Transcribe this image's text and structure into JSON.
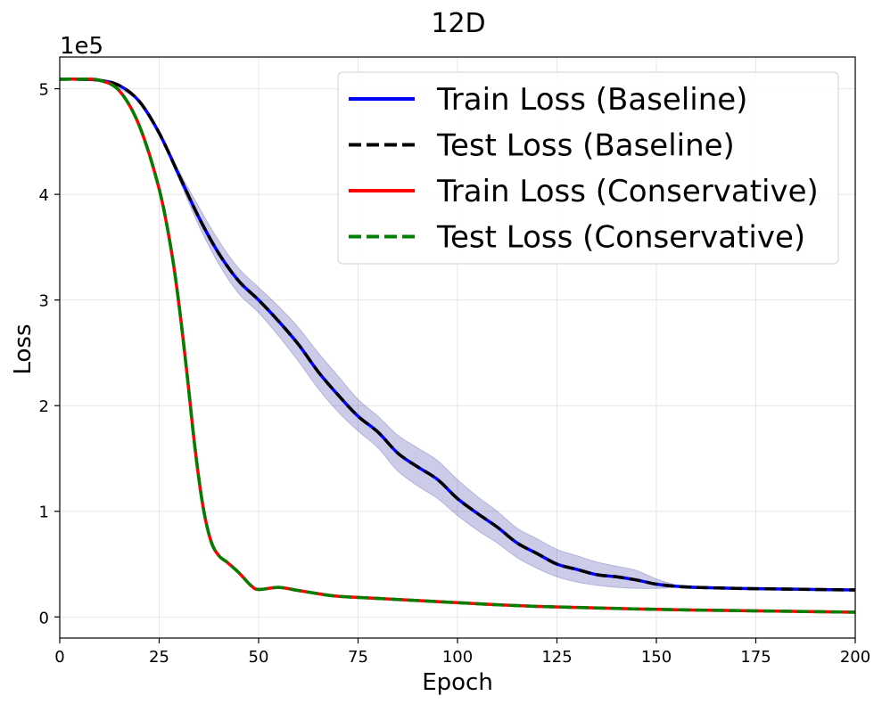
{
  "chart_data": {
    "type": "line",
    "title": "12D",
    "xlabel": "Epoch",
    "ylabel": "Loss",
    "y_offset_label": "1e5",
    "xlim": [
      0,
      200
    ],
    "ylim": [
      -0.2,
      5.3
    ],
    "xticks": [
      0,
      25,
      50,
      75,
      100,
      125,
      150,
      175,
      200
    ],
    "yticks": [
      0,
      1,
      2,
      3,
      4,
      5
    ],
    "grid": true,
    "legend_position": "top-right",
    "series": [
      {
        "name": "Train Loss (Baseline)",
        "color": "#0000ff",
        "style": "solid",
        "x": [
          0,
          5,
          10,
          15,
          20,
          25,
          30,
          35,
          40,
          45,
          50,
          55,
          60,
          65,
          70,
          75,
          80,
          85,
          90,
          95,
          100,
          105,
          110,
          115,
          120,
          125,
          130,
          135,
          140,
          145,
          150,
          155,
          160,
          170,
          180,
          190,
          200
        ],
        "y": [
          5.09,
          5.09,
          5.08,
          5.03,
          4.88,
          4.58,
          4.18,
          3.78,
          3.44,
          3.18,
          3.0,
          2.8,
          2.58,
          2.32,
          2.1,
          1.9,
          1.75,
          1.55,
          1.42,
          1.3,
          1.12,
          0.98,
          0.85,
          0.7,
          0.6,
          0.5,
          0.45,
          0.4,
          0.38,
          0.35,
          0.31,
          0.29,
          0.28,
          0.27,
          0.265,
          0.26,
          0.255
        ]
      },
      {
        "name": "Test Loss (Baseline)",
        "color": "#000000",
        "style": "dashed",
        "x": [
          0,
          5,
          10,
          15,
          20,
          25,
          30,
          35,
          40,
          45,
          50,
          55,
          60,
          65,
          70,
          75,
          80,
          85,
          90,
          95,
          100,
          105,
          110,
          115,
          120,
          125,
          130,
          135,
          140,
          145,
          150,
          155,
          160,
          170,
          180,
          190,
          200
        ],
        "y": [
          5.09,
          5.09,
          5.08,
          5.03,
          4.88,
          4.58,
          4.18,
          3.78,
          3.44,
          3.18,
          3.0,
          2.8,
          2.58,
          2.32,
          2.1,
          1.9,
          1.75,
          1.55,
          1.42,
          1.3,
          1.12,
          0.98,
          0.85,
          0.7,
          0.6,
          0.5,
          0.45,
          0.4,
          0.38,
          0.35,
          0.31,
          0.29,
          0.28,
          0.27,
          0.265,
          0.26,
          0.255
        ]
      },
      {
        "name": "Train Loss (Conservative)",
        "color": "#ff0000",
        "style": "solid",
        "x": [
          0,
          5,
          10,
          15,
          20,
          25,
          28,
          30,
          32,
          34,
          36,
          38,
          40,
          42,
          45,
          48,
          50,
          55,
          60,
          65,
          70,
          80,
          90,
          100,
          110,
          120,
          130,
          140,
          150,
          160,
          170,
          180,
          190,
          200
        ],
        "y": [
          5.09,
          5.09,
          5.08,
          4.98,
          4.65,
          4.05,
          3.48,
          2.95,
          2.3,
          1.6,
          1.05,
          0.72,
          0.58,
          0.52,
          0.42,
          0.3,
          0.26,
          0.28,
          0.25,
          0.22,
          0.195,
          0.175,
          0.155,
          0.135,
          0.115,
          0.1,
          0.09,
          0.08,
          0.072,
          0.065,
          0.06,
          0.055,
          0.05,
          0.045
        ]
      },
      {
        "name": "Test Loss (Conservative)",
        "color": "#008000",
        "style": "dashed",
        "x": [
          0,
          5,
          10,
          15,
          20,
          25,
          28,
          30,
          32,
          34,
          36,
          38,
          40,
          42,
          45,
          48,
          50,
          55,
          60,
          65,
          70,
          80,
          90,
          100,
          110,
          120,
          130,
          140,
          150,
          160,
          170,
          180,
          190,
          200
        ],
        "y": [
          5.09,
          5.09,
          5.08,
          4.98,
          4.65,
          4.05,
          3.48,
          2.95,
          2.3,
          1.6,
          1.05,
          0.72,
          0.58,
          0.52,
          0.42,
          0.3,
          0.26,
          0.28,
          0.25,
          0.22,
          0.195,
          0.175,
          0.155,
          0.135,
          0.115,
          0.1,
          0.09,
          0.08,
          0.072,
          0.065,
          0.06,
          0.055,
          0.05,
          0.045
        ]
      }
    ],
    "bands": [
      {
        "for": "Train Loss (Baseline)",
        "color": "#00008b",
        "opacity": 0.2,
        "x": [
          0,
          10,
          20,
          25,
          30,
          35,
          40,
          45,
          50,
          55,
          60,
          65,
          70,
          75,
          80,
          85,
          90,
          95,
          100,
          105,
          110,
          115,
          120,
          125,
          130,
          135,
          140,
          145,
          150,
          155
        ],
        "lower": [
          5.09,
          5.08,
          4.88,
          4.58,
          4.14,
          3.7,
          3.34,
          3.06,
          2.88,
          2.66,
          2.42,
          2.16,
          1.94,
          1.76,
          1.6,
          1.38,
          1.24,
          1.12,
          0.96,
          0.82,
          0.7,
          0.56,
          0.46,
          0.38,
          0.33,
          0.3,
          0.28,
          0.27,
          0.27,
          0.28
        ],
        "upper": [
          5.09,
          5.08,
          4.88,
          4.6,
          4.22,
          3.88,
          3.56,
          3.3,
          3.12,
          2.94,
          2.74,
          2.5,
          2.28,
          2.06,
          1.9,
          1.72,
          1.6,
          1.48,
          1.3,
          1.14,
          1.0,
          0.84,
          0.74,
          0.64,
          0.58,
          0.52,
          0.48,
          0.44,
          0.36,
          0.3
        ]
      }
    ]
  }
}
